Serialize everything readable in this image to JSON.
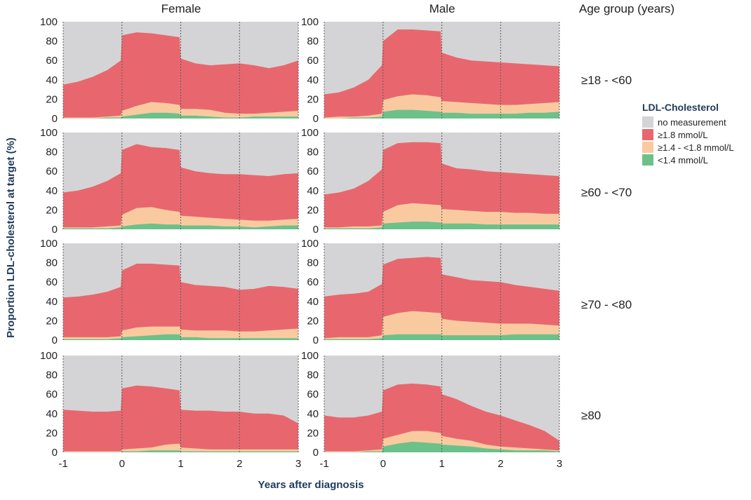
{
  "chart_data": {
    "type": "area",
    "stacked": true,
    "facet_layout": {
      "columns": [
        "Female",
        "Male"
      ],
      "rows_title": "Age group (years)",
      "rows": [
        "≥18 - <60",
        "≥60 - <70",
        "≥70 - <80",
        "≥80"
      ]
    },
    "xlabel": "Years after diagnosis",
    "ylabel": "Proportion LDL-cholesterol at target (%)",
    "xlim": [
      -1,
      3
    ],
    "ylim": [
      0,
      100
    ],
    "x_ticks": [
      "-1",
      "0",
      "1",
      "2",
      "3"
    ],
    "y_ticks": [
      "0",
      "20",
      "40",
      "60",
      "80",
      "100"
    ],
    "x": [
      -1,
      -0.75,
      -0.5,
      -0.25,
      -0.02,
      0,
      0.25,
      0.5,
      0.75,
      0.98,
      1,
      1.25,
      1.5,
      1.75,
      2,
      2.25,
      2.5,
      2.75,
      3
    ],
    "legend": {
      "title": "LDL-Cholesterol",
      "position": "right",
      "items": [
        {
          "label": "no measurement",
          "color": "#d4d4d6"
        },
        {
          "label": "≥1.8 mmol/L",
          "color": "#e8676e"
        },
        {
          "label": "≥1.4 - <1.8 mmol/L",
          "color": "#f9caa0"
        },
        {
          "label": "<1.4 mmol/L",
          "color": "#6cc18a"
        }
      ]
    },
    "series_note": "Cumulative tops: total = measured proportion; mid = ≥1.4 and <1.4 combined; low = <1.4 only",
    "panels": [
      {
        "column": "Female",
        "row": "≥18 - <60",
        "total": [
          35,
          38,
          43,
          50,
          60,
          86,
          89,
          88,
          86,
          84,
          62,
          57,
          55,
          56,
          57,
          55,
          52,
          55,
          60
        ],
        "mid": [
          1,
          1,
          1,
          2,
          3,
          8,
          13,
          17,
          16,
          14,
          10,
          10,
          9,
          6,
          5,
          5,
          6,
          7,
          8
        ],
        "low": [
          0,
          0,
          0,
          1,
          1,
          2,
          4,
          6,
          6,
          5,
          3,
          3,
          2,
          1,
          1,
          2,
          2,
          2,
          2
        ]
      },
      {
        "column": "Male",
        "row": "≥18 - <60",
        "total": [
          25,
          27,
          32,
          40,
          55,
          80,
          92,
          92,
          91,
          90,
          68,
          63,
          60,
          59,
          58,
          57,
          56,
          55,
          54
        ],
        "mid": [
          1,
          2,
          2,
          3,
          5,
          19,
          23,
          25,
          24,
          22,
          18,
          17,
          16,
          15,
          14,
          14,
          15,
          16,
          17
        ],
        "low": [
          0,
          0,
          1,
          1,
          2,
          7,
          9,
          9,
          8,
          7,
          6,
          6,
          5,
          5,
          5,
          5,
          6,
          6,
          7
        ]
      },
      {
        "column": "Female",
        "row": "≥60 - <70",
        "total": [
          38,
          40,
          44,
          50,
          58,
          82,
          88,
          85,
          84,
          82,
          64,
          60,
          58,
          57,
          57,
          56,
          55,
          57,
          58
        ],
        "mid": [
          2,
          2,
          2,
          3,
          4,
          15,
          22,
          23,
          20,
          18,
          14,
          13,
          12,
          11,
          10,
          9,
          9,
          10,
          11
        ],
        "low": [
          1,
          1,
          1,
          1,
          2,
          3,
          5,
          6,
          5,
          5,
          4,
          4,
          4,
          3,
          3,
          2,
          3,
          4,
          4
        ]
      },
      {
        "column": "Male",
        "row": "≥60 - <70",
        "total": [
          36,
          38,
          42,
          50,
          62,
          82,
          89,
          90,
          90,
          89,
          68,
          63,
          62,
          60,
          59,
          58,
          57,
          56,
          55
        ],
        "mid": [
          2,
          2,
          3,
          3,
          4,
          18,
          25,
          27,
          26,
          25,
          21,
          20,
          19,
          18,
          18,
          17,
          17,
          16,
          16
        ],
        "low": [
          1,
          1,
          1,
          1,
          2,
          6,
          7,
          8,
          8,
          7,
          6,
          6,
          6,
          5,
          5,
          5,
          5,
          5,
          5
        ]
      },
      {
        "column": "Female",
        "row": "≥70 - <80",
        "total": [
          44,
          45,
          47,
          50,
          55,
          72,
          79,
          79,
          78,
          77,
          60,
          57,
          56,
          55,
          52,
          53,
          56,
          55,
          53
        ],
        "mid": [
          3,
          3,
          3,
          3,
          4,
          10,
          13,
          14,
          14,
          14,
          11,
          10,
          10,
          10,
          9,
          9,
          10,
          11,
          12
        ],
        "low": [
          1,
          1,
          1,
          1,
          2,
          3,
          4,
          5,
          6,
          6,
          3,
          3,
          2,
          2,
          2,
          2,
          2,
          2,
          2
        ]
      },
      {
        "column": "Male",
        "row": "≥70 - <80",
        "total": [
          45,
          47,
          48,
          50,
          58,
          78,
          84,
          85,
          86,
          85,
          68,
          65,
          62,
          61,
          60,
          57,
          55,
          53,
          51
        ],
        "mid": [
          2,
          3,
          3,
          3,
          5,
          24,
          28,
          30,
          29,
          28,
          22,
          20,
          19,
          18,
          17,
          17,
          17,
          16,
          15
        ],
        "low": [
          1,
          1,
          1,
          1,
          2,
          5,
          6,
          6,
          6,
          6,
          5,
          5,
          5,
          5,
          5,
          6,
          6,
          6,
          6
        ]
      },
      {
        "column": "Female",
        "row": "≥80",
        "total": [
          44,
          43,
          42,
          42,
          43,
          66,
          69,
          68,
          66,
          64,
          44,
          43,
          43,
          42,
          42,
          40,
          40,
          38,
          30
        ],
        "mid": [
          1,
          1,
          1,
          1,
          1,
          3,
          4,
          5,
          8,
          9,
          5,
          4,
          3,
          3,
          3,
          3,
          3,
          3,
          3
        ],
        "low": [
          0,
          0,
          0,
          0,
          0,
          1,
          1,
          2,
          2,
          2,
          1,
          1,
          1,
          1,
          1,
          1,
          1,
          1,
          1
        ]
      },
      {
        "column": "Male",
        "row": "≥80",
        "total": [
          38,
          36,
          36,
          38,
          42,
          64,
          70,
          71,
          70,
          68,
          60,
          55,
          48,
          42,
          38,
          33,
          28,
          22,
          12
        ],
        "mid": [
          1,
          1,
          1,
          2,
          3,
          14,
          18,
          22,
          22,
          20,
          17,
          14,
          12,
          8,
          6,
          5,
          4,
          3,
          2
        ],
        "low": [
          0,
          0,
          0,
          1,
          1,
          6,
          9,
          11,
          10,
          9,
          8,
          7,
          6,
          4,
          3,
          2,
          2,
          2,
          1
        ]
      }
    ]
  }
}
